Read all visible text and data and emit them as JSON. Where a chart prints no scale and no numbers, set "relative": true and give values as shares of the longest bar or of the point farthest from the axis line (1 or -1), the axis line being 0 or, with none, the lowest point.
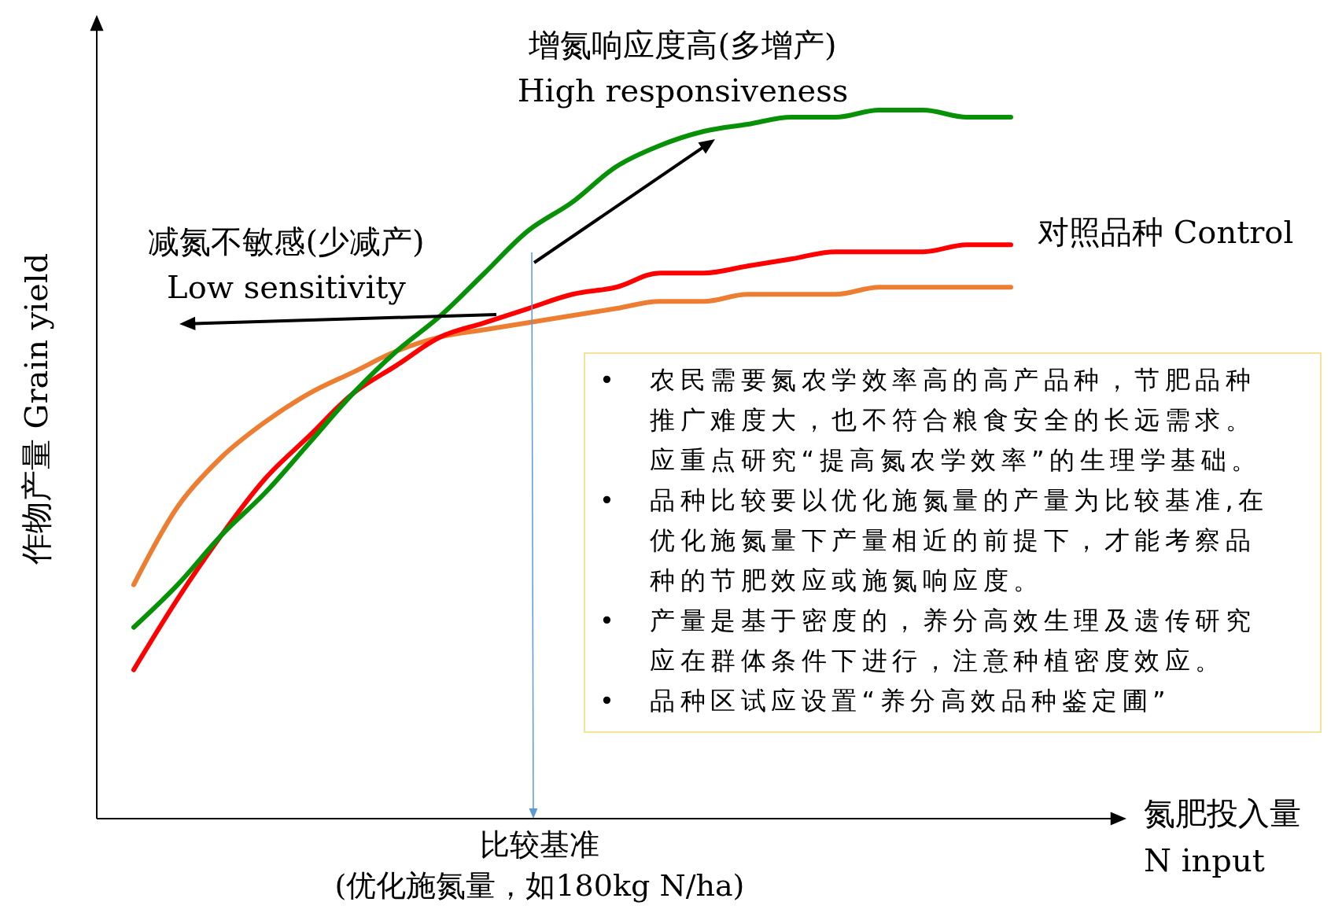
{
  "chart_data": {
    "type": "line",
    "relative": true,
    "xlabel": "氮肥投入量\nN input",
    "ylabel": "作物产量 Grain yield",
    "marker": "none",
    "line_style": "solid",
    "categories": [
      null,
      null,
      null,
      null,
      null,
      null,
      null,
      null,
      null,
      null,
      null,
      null,
      null,
      null,
      null,
      null,
      null,
      null,
      null,
      null,
      null
    ],
    "series": [
      {
        "color": "#079107",
        "values": [
          0.27,
          0.33,
          0.4,
          0.46,
          0.53,
          0.6,
          0.66,
          0.71,
          0.77,
          0.83,
          0.87,
          0.92,
          0.95,
          0.97,
          0.98,
          0.99,
          0.99,
          1,
          1,
          0.99,
          0.99
        ]
      },
      {
        "color": "#ff0000",
        "values": [
          0.21,
          0.31,
          0.4,
          0.48,
          0.54,
          0.6,
          0.64,
          0.68,
          0.7,
          0.72,
          0.74,
          0.75,
          0.77,
          0.77,
          0.78,
          0.79,
          0.8,
          0.8,
          0.8,
          0.81,
          0.81
        ]
      },
      {
        "color": "#ed7d31",
        "values": [
          0.33,
          0.44,
          0.51,
          0.56,
          0.6,
          0.63,
          0.66,
          0.68,
          0.69,
          0.7,
          0.71,
          0.72,
          0.73,
          0.73,
          0.74,
          0.74,
          0.74,
          0.75,
          0.75,
          0.75,
          0.75
        ]
      }
    ],
    "annotations": [
      "增氮响应度高(多增产)\nHigh responsiveness",
      "减氮不敏感(少减产)\nLow sensitivity",
      "对照品种 Control",
      "比较基准\n(优化施氮量，如180kg N/ha)",
      "• 农民需要氮农学效率高的高产品种，节肥品种推广难度大，也不符合粮食安全的长远需求。应重点研究“提高氮农学效率”的生理学基础。",
      "• 品种比较要以优化施氮量的产量为比较基准,在优化施氮量下产量相近的前提下，才能考察品种的节肥效应或施氮响应度。",
      "• 产量是基于密度的，养分高效生理及遗传研究应在群体条件下进行，注意种植密度效应。",
      "• 品种区试应设置“养分高效品种鉴定圃”"
    ]
  }
}
